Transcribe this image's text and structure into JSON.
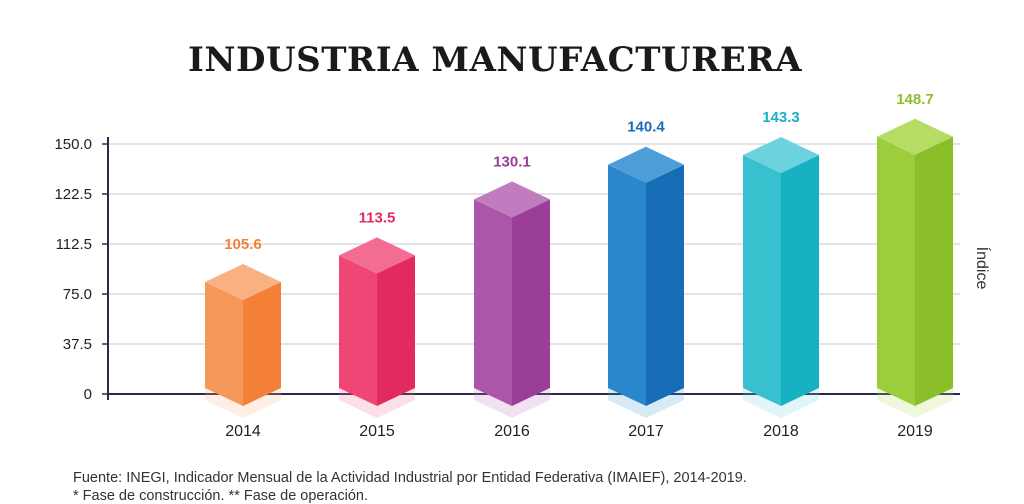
{
  "chart_data": {
    "type": "bar",
    "title": "INDUSTRIA MANUFACTURERA",
    "xlabel": "",
    "ylabel": "Índice",
    "categories": [
      "2014",
      "2015",
      "2016",
      "2017",
      "2018",
      "2019"
    ],
    "series": [
      {
        "values": [
          105.6,
          113.5,
          130.1,
          140.4,
          143.3,
          148.7
        ]
      }
    ],
    "y_ticks": [
      "150.0",
      "122.5",
      "112.5",
      "75.0",
      "37.5",
      "0"
    ],
    "value_labels": [
      "105.6",
      "113.5",
      "130.1",
      "140.4",
      "143.3",
      "148.7"
    ],
    "grid": true,
    "legend": "none",
    "colors": {
      "bars": [
        {
          "front": "#f6985a",
          "side": "#f47f37",
          "top": "#f9b183"
        },
        {
          "front": "#ef4676",
          "side": "#e32a5f",
          "top": "#f36d93"
        },
        {
          "front": "#ac56a9",
          "side": "#9a3e98",
          "top": "#c07cbe"
        },
        {
          "front": "#2b87cc",
          "side": "#176db5",
          "top": "#4d9ed8"
        },
        {
          "front": "#39c0cf",
          "side": "#18b1c2",
          "top": "#6cd2dd"
        },
        {
          "front": "#9ccd3c",
          "side": "#8bbf2a",
          "top": "#b5dc63"
        }
      ],
      "label_colors": [
        "#f47f37",
        "#e32a5f",
        "#9a3e98",
        "#176db5",
        "#18b1c2",
        "#8bbf2a"
      ],
      "grid": "#d4d4d4",
      "axis": "#2a2a4a"
    }
  },
  "footer": {
    "source": "Fuente: INEGI, Indicador Mensual de la Actividad Industrial por Entidad Federativa (IMAIEF), 2014-2019.",
    "note": "* Fase de construcción. ** Fase de operación."
  }
}
